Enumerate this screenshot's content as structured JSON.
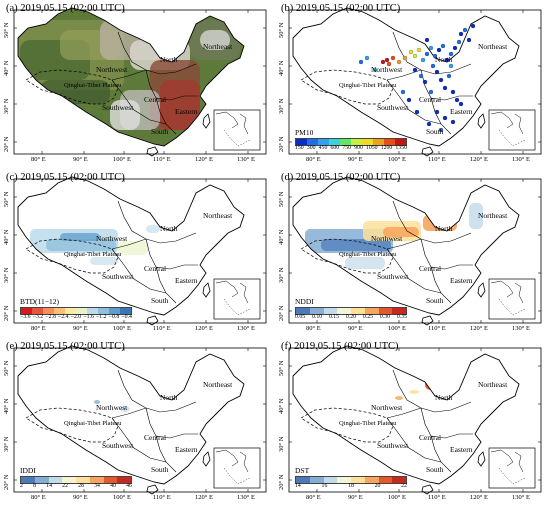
{
  "x_ticks": [
    "80° E",
    "90° E",
    "100° E",
    "110° E",
    "120° E",
    "130° E"
  ],
  "y_ticks": [
    "50° N",
    "40° N",
    "30° N",
    "20° N"
  ],
  "regions": {
    "north": "North",
    "northeast": "Northeast",
    "northwest": "Northwest",
    "qinghai": "Qinghai-Tibet Plateau",
    "southwest": "Southwest",
    "central": "Central",
    "eastern": "Eastern",
    "south": "South"
  },
  "panels": [
    {
      "id": "a",
      "title": "(a) 2019.05.15 (02:00 UTC)",
      "type": "rgb"
    },
    {
      "id": "b",
      "title": "(b) 2019.05.15 (02:00 UTC)",
      "type": "points",
      "colorbar": {
        "title": "PM10",
        "ticks": [
          "150",
          "300",
          "450",
          "600",
          "750",
          "900",
          "1050",
          "1200",
          "1350"
        ],
        "colors": [
          "#0a2dc8",
          "#1e6ee6",
          "#32a0f0",
          "#3cd2dc",
          "#64e664",
          "#c8f03c",
          "#f0dc28",
          "#f0a01e",
          "#e65014",
          "#c81414"
        ]
      }
    },
    {
      "id": "c",
      "title": "(c) 2019.05.15 (02:00 UTC)",
      "type": "field",
      "colorbar": {
        "title": "BTD(11−12)",
        "ticks": [
          "−3.6",
          "−3.2",
          "−2.8",
          "−2.4",
          "−2.0",
          "−1.6",
          "−1.2",
          "−0.8",
          "−0.4"
        ],
        "colors": [
          "#d7191c",
          "#e8553a",
          "#f5905a",
          "#fbbf7a",
          "#fee9a0",
          "#e8f4c8",
          "#bcdbea",
          "#8ebfdc",
          "#5f9ccb",
          "#3a75b8"
        ]
      }
    },
    {
      "id": "d",
      "title": "(d) 2019.05.15 (02:00 UTC)",
      "type": "field",
      "colorbar": {
        "title": "NDDI",
        "ticks": [
          "0.05",
          "0.10",
          "0.15",
          "0.20",
          "0.25",
          "0.30",
          "0.35"
        ],
        "colors": [
          "#4a7ab8",
          "#86aed4",
          "#c2daea",
          "#f4f4d8",
          "#fde09a",
          "#f8a45c",
          "#e5582e",
          "#c8281e"
        ]
      }
    },
    {
      "id": "e",
      "title": "(e) 2019.05.15 (02:00 UTC)",
      "type": "field",
      "colorbar": {
        "title": "IDDI",
        "ticks": [
          "2",
          "8",
          "14",
          "22",
          "28",
          "34",
          "40",
          "46"
        ],
        "colors": [
          "#4a7ab8",
          "#86aed4",
          "#c2daea",
          "#f4f4d8",
          "#fde09a",
          "#f8a45c",
          "#e5582e",
          "#c8281e"
        ]
      }
    },
    {
      "id": "f",
      "title": "(f) 2019.05.15 (02:00 UTC)",
      "type": "field",
      "colorbar": {
        "title": "DST",
        "ticks": [
          "14",
          "16",
          "18",
          "20",
          "22"
        ],
        "colors": [
          "#4a7ab8",
          "#86aed4",
          "#c2daea",
          "#f4f4d8",
          "#fde09a",
          "#f8a45c",
          "#e5582e",
          "#c8281e"
        ]
      }
    }
  ]
}
